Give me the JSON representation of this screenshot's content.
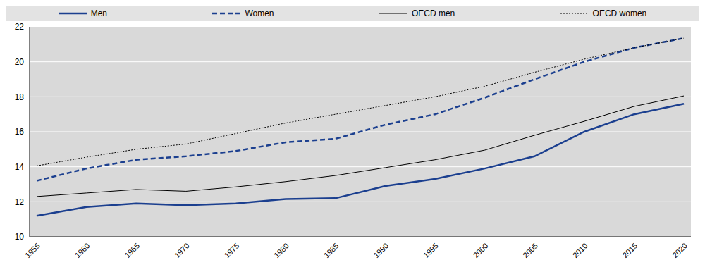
{
  "chart_data": {
    "type": "line",
    "categories": [
      "1955",
      "1960",
      "1965",
      "1970",
      "1975",
      "1980",
      "1985",
      "1990",
      "1995",
      "2000",
      "2005",
      "2010",
      "2015",
      "2020"
    ],
    "series": [
      {
        "name": "Men",
        "color": "#1b3f8f",
        "line_style": "solid",
        "values": [
          11.2,
          11.7,
          11.9,
          11.8,
          11.9,
          12.15,
          12.2,
          12.9,
          13.3,
          13.9,
          14.6,
          16.0,
          17.0,
          17.6
        ]
      },
      {
        "name": "Women",
        "color": "#1b3f8f",
        "line_style": "dashed",
        "values": [
          13.2,
          13.9,
          14.4,
          14.6,
          14.9,
          15.4,
          15.6,
          16.4,
          17.0,
          17.95,
          19.0,
          20.0,
          20.8,
          21.35
        ]
      },
      {
        "name": "OECD men",
        "color": "#000000",
        "line_style": "solid",
        "values": [
          12.3,
          12.5,
          12.7,
          12.6,
          12.85,
          13.15,
          13.5,
          13.95,
          14.4,
          14.95,
          15.8,
          16.6,
          17.45,
          18.05
        ]
      },
      {
        "name": "OECD women",
        "color": "#000000",
        "line_style": "dotted",
        "values": [
          14.05,
          14.55,
          15.0,
          15.3,
          15.9,
          16.5,
          17.0,
          17.5,
          18.0,
          18.6,
          19.4,
          20.15,
          20.8,
          21.35
        ]
      }
    ],
    "ylim": [
      10,
      22
    ],
    "yticks": [
      10,
      12,
      14,
      16,
      18,
      20,
      22
    ],
    "grid": true,
    "legend": "top"
  }
}
